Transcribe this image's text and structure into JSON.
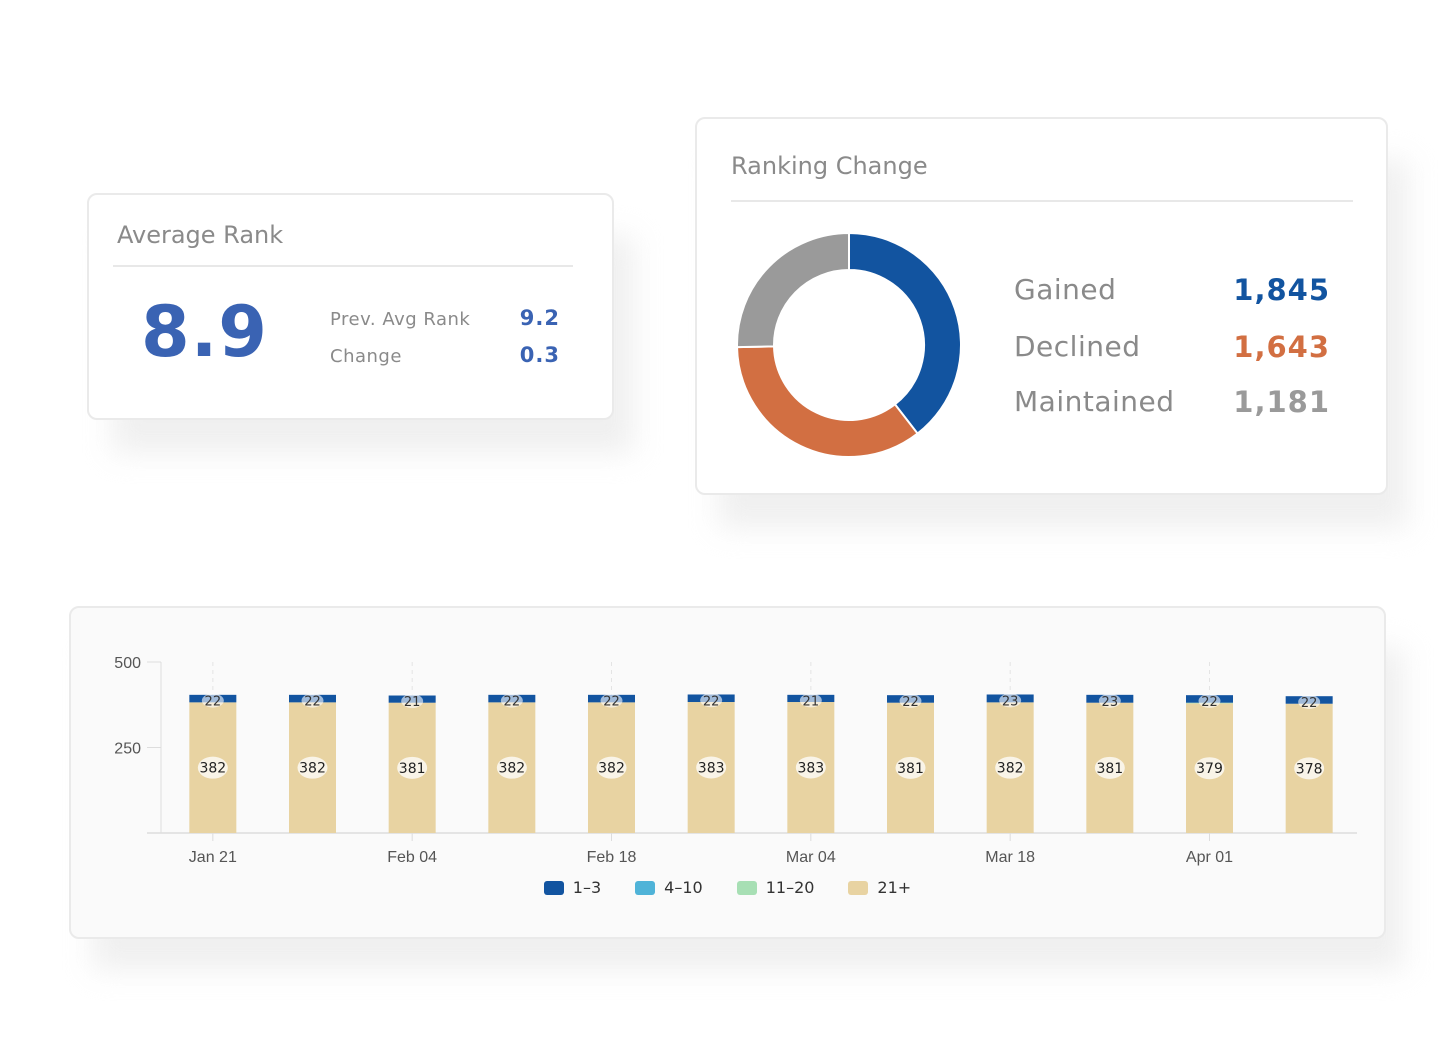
{
  "average_rank": {
    "title": "Average Rank",
    "value": "8.9",
    "prev_label": "Prev. Avg Rank",
    "prev_value": "9.2",
    "change_label": "Change",
    "change_value": "0.3"
  },
  "ranking_change": {
    "title": "Ranking Change",
    "items": [
      {
        "label": "Gained",
        "value": "1,845",
        "color": "#1254a0"
      },
      {
        "label": "Declined",
        "value": "1,643",
        "color": "#d26f42"
      },
      {
        "label": "Maintained",
        "value": "1,181",
        "color": "#9a9a9a"
      }
    ]
  },
  "chart_data": [
    {
      "type": "pie",
      "variant": "donut",
      "title": "Ranking Change",
      "slices": [
        {
          "name": "Gained",
          "value": 1845,
          "color": "#1254a0"
        },
        {
          "name": "Declined",
          "value": 1643,
          "color": "#d26f42"
        },
        {
          "name": "Maintained",
          "value": 1181,
          "color": "#9a9a9a"
        }
      ]
    },
    {
      "type": "bar",
      "stacked": true,
      "ylim": [
        0,
        500
      ],
      "yticks": [
        250,
        500
      ],
      "x_tick_labels": [
        "Jan 21",
        "",
        "Feb 04",
        "",
        "Feb 18",
        "",
        "Mar 04",
        "",
        "Mar 18",
        "",
        "Apr 01",
        ""
      ],
      "grid": "dashed vertical at labelled ticks",
      "legend_position": "bottom-center",
      "series": [
        {
          "name": "21+",
          "color": "#e8d3a2",
          "values": [
            382,
            382,
            381,
            382,
            382,
            383,
            383,
            381,
            382,
            381,
            379,
            378
          ]
        },
        {
          "name": "11–20",
          "color": "#a7dfb4",
          "values": [
            0,
            0,
            0,
            0,
            0,
            0,
            0,
            0,
            0,
            0,
            2,
            0
          ]
        },
        {
          "name": "4–10",
          "color": "#4fb3d8",
          "values": [
            0,
            0,
            0,
            0,
            0,
            0,
            0,
            0,
            0,
            0,
            0,
            0
          ]
        },
        {
          "name": "1–3",
          "color": "#1254a0",
          "values": [
            22,
            22,
            21,
            22,
            22,
            22,
            21,
            22,
            23,
            23,
            22,
            22
          ]
        }
      ],
      "legend_order": [
        "1–3",
        "4–10",
        "11–20",
        "21+"
      ]
    }
  ]
}
